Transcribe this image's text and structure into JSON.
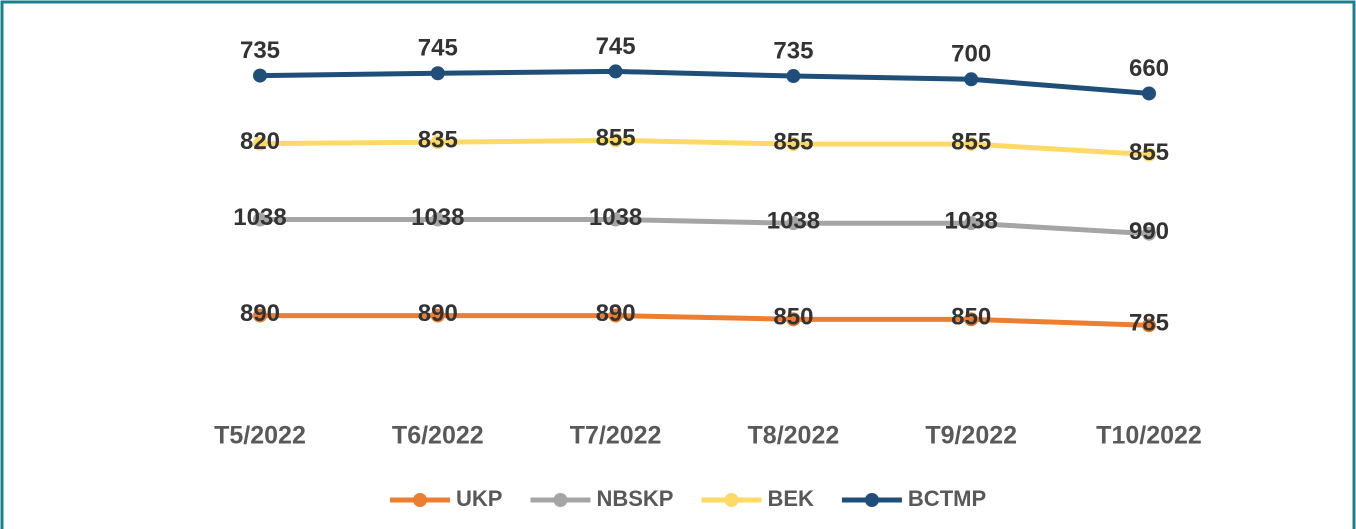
{
  "chart_data": {
    "type": "stacked_line",
    "categories": [
      "T5/2022",
      "T6/2022",
      "T7/2022",
      "T8/2022",
      "T9/2022",
      "T10/2022"
    ],
    "series": [
      {
        "name": "UKP",
        "color": "#ed7d31",
        "values": [
          890,
          890,
          890,
          850,
          850,
          785
        ]
      },
      {
        "name": "NBSKP",
        "color": "#a5a5a5",
        "values": [
          1038,
          1038,
          1038,
          1038,
          1038,
          990
        ]
      },
      {
        "name": "BEK",
        "color": "#ffd966",
        "values": [
          820,
          835,
          855,
          855,
          855,
          855
        ]
      },
      {
        "name": "BCTMP",
        "color": "#1f4e79",
        "values": [
          735,
          745,
          745,
          735,
          700,
          660
        ]
      }
    ],
    "ylim": [
      0,
      3500
    ],
    "legend": "bottom"
  }
}
